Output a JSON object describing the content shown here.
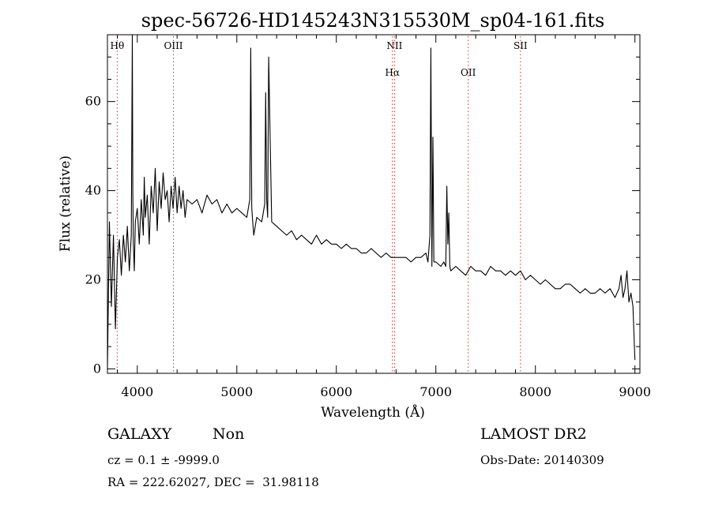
{
  "chart_data": {
    "type": "line",
    "title": "spec-56726-HD145243N315530M_sp04-161.fits",
    "xlabel": "Wavelength (Å)",
    "ylabel": "Flux (relative)",
    "xlim": [
      3700,
      9050
    ],
    "ylim": [
      -1,
      75
    ],
    "xticks": [
      4000,
      5000,
      6000,
      7000,
      8000,
      9000
    ],
    "yticks": [
      0,
      20,
      40,
      60
    ],
    "grid": false,
    "legend": "none",
    "line_color": "#000000",
    "marker_color": "#cc3333",
    "line_markers": [
      {
        "label": "Hθ",
        "x": 3798,
        "row": 0
      },
      {
        "label": "OIII",
        "x": 4363,
        "row": 0
      },
      {
        "label": "NII",
        "x": 6584,
        "row": 0
      },
      {
        "label": "Hα",
        "x": 6563,
        "row": 1
      },
      {
        "label": "OII",
        "x": 7325,
        "row": 1
      },
      {
        "label": "SII",
        "x": 7850,
        "row": 0
      }
    ],
    "series": [
      {
        "x": [
          3700,
          3720,
          3740,
          3760,
          3780,
          3800,
          3820,
          3840,
          3860,
          3880,
          3900,
          3920,
          3940,
          3950,
          3955,
          3960,
          3970,
          3980,
          4000,
          4020,
          4040,
          4060,
          4070,
          4080,
          4100,
          4120,
          4140,
          4160,
          4180,
          4200,
          4220,
          4240,
          4260,
          4280,
          4300,
          4320,
          4340,
          4360,
          4380,
          4400,
          4420,
          4440,
          4460,
          4480,
          4500,
          4550,
          4600,
          4650,
          4700,
          4750,
          4800,
          4850,
          4900,
          4950,
          5000,
          5050,
          5100,
          5130,
          5140,
          5150,
          5160,
          5170,
          5200,
          5250,
          5280,
          5290,
          5300,
          5310,
          5320,
          5350,
          5400,
          5450,
          5500,
          5550,
          5600,
          5650,
          5700,
          5750,
          5800,
          5850,
          5900,
          5950,
          6000,
          6050,
          6100,
          6150,
          6200,
          6250,
          6300,
          6350,
          6400,
          6450,
          6500,
          6550,
          6600,
          6650,
          6700,
          6750,
          6800,
          6850,
          6900,
          6920,
          6940,
          6950,
          6960,
          6970,
          6980,
          7000,
          7050,
          7080,
          7100,
          7110,
          7120,
          7130,
          7140,
          7150,
          7200,
          7250,
          7300,
          7350,
          7400,
          7450,
          7500,
          7550,
          7600,
          7650,
          7700,
          7750,
          7800,
          7850,
          7900,
          7950,
          8000,
          8050,
          8100,
          8150,
          8200,
          8250,
          8300,
          8350,
          8400,
          8450,
          8500,
          8550,
          8600,
          8650,
          8700,
          8750,
          8800,
          8820,
          8840,
          8860,
          8880,
          8900,
          8920,
          8940,
          8960,
          8980,
          9000
        ],
        "y": [
          0,
          33,
          14,
          30,
          9,
          25,
          29,
          21,
          30,
          24,
          32,
          22,
          30,
          76,
          40,
          28,
          22,
          33,
          36,
          28,
          38,
          30,
          43,
          34,
          39,
          28,
          41,
          35,
          45,
          31,
          42,
          36,
          44,
          38,
          40,
          33,
          41,
          36,
          43,
          35,
          41,
          36,
          40,
          34,
          38,
          37,
          38,
          35,
          39,
          37,
          38,
          35,
          37,
          35,
          36,
          35,
          34,
          38,
          72,
          36,
          33,
          30,
          34,
          33,
          37,
          62,
          38,
          34,
          70,
          33,
          32,
          31,
          30,
          31,
          29,
          30,
          29,
          28,
          30,
          28,
          29,
          28,
          28,
          27,
          28,
          27,
          27,
          26,
          26,
          27,
          26,
          25,
          26,
          25,
          25,
          25,
          25,
          24,
          25,
          25,
          26,
          24,
          30,
          72,
          23,
          52,
          24,
          24,
          23,
          24,
          23,
          41,
          28,
          35,
          23,
          22,
          23,
          22,
          21,
          23,
          22,
          22,
          21,
          23,
          22,
          22,
          21,
          22,
          21,
          22,
          20,
          21,
          20,
          19,
          20,
          19,
          18,
          18,
          19,
          19,
          18,
          17,
          18,
          17,
          17,
          18,
          17,
          18,
          16,
          17,
          18,
          21,
          16,
          18,
          22,
          15,
          17,
          14,
          2
        ]
      }
    ]
  },
  "info": {
    "class_label": "GALAXY",
    "subclass_label": "Non",
    "survey_label": "LAMOST DR2",
    "cz_text": "cz = 0.1 ± -9999.0",
    "obsdate_text": "Obs-Date: 20140309",
    "radec_text": "RA = 222.62027, DEC =  31.98118"
  }
}
